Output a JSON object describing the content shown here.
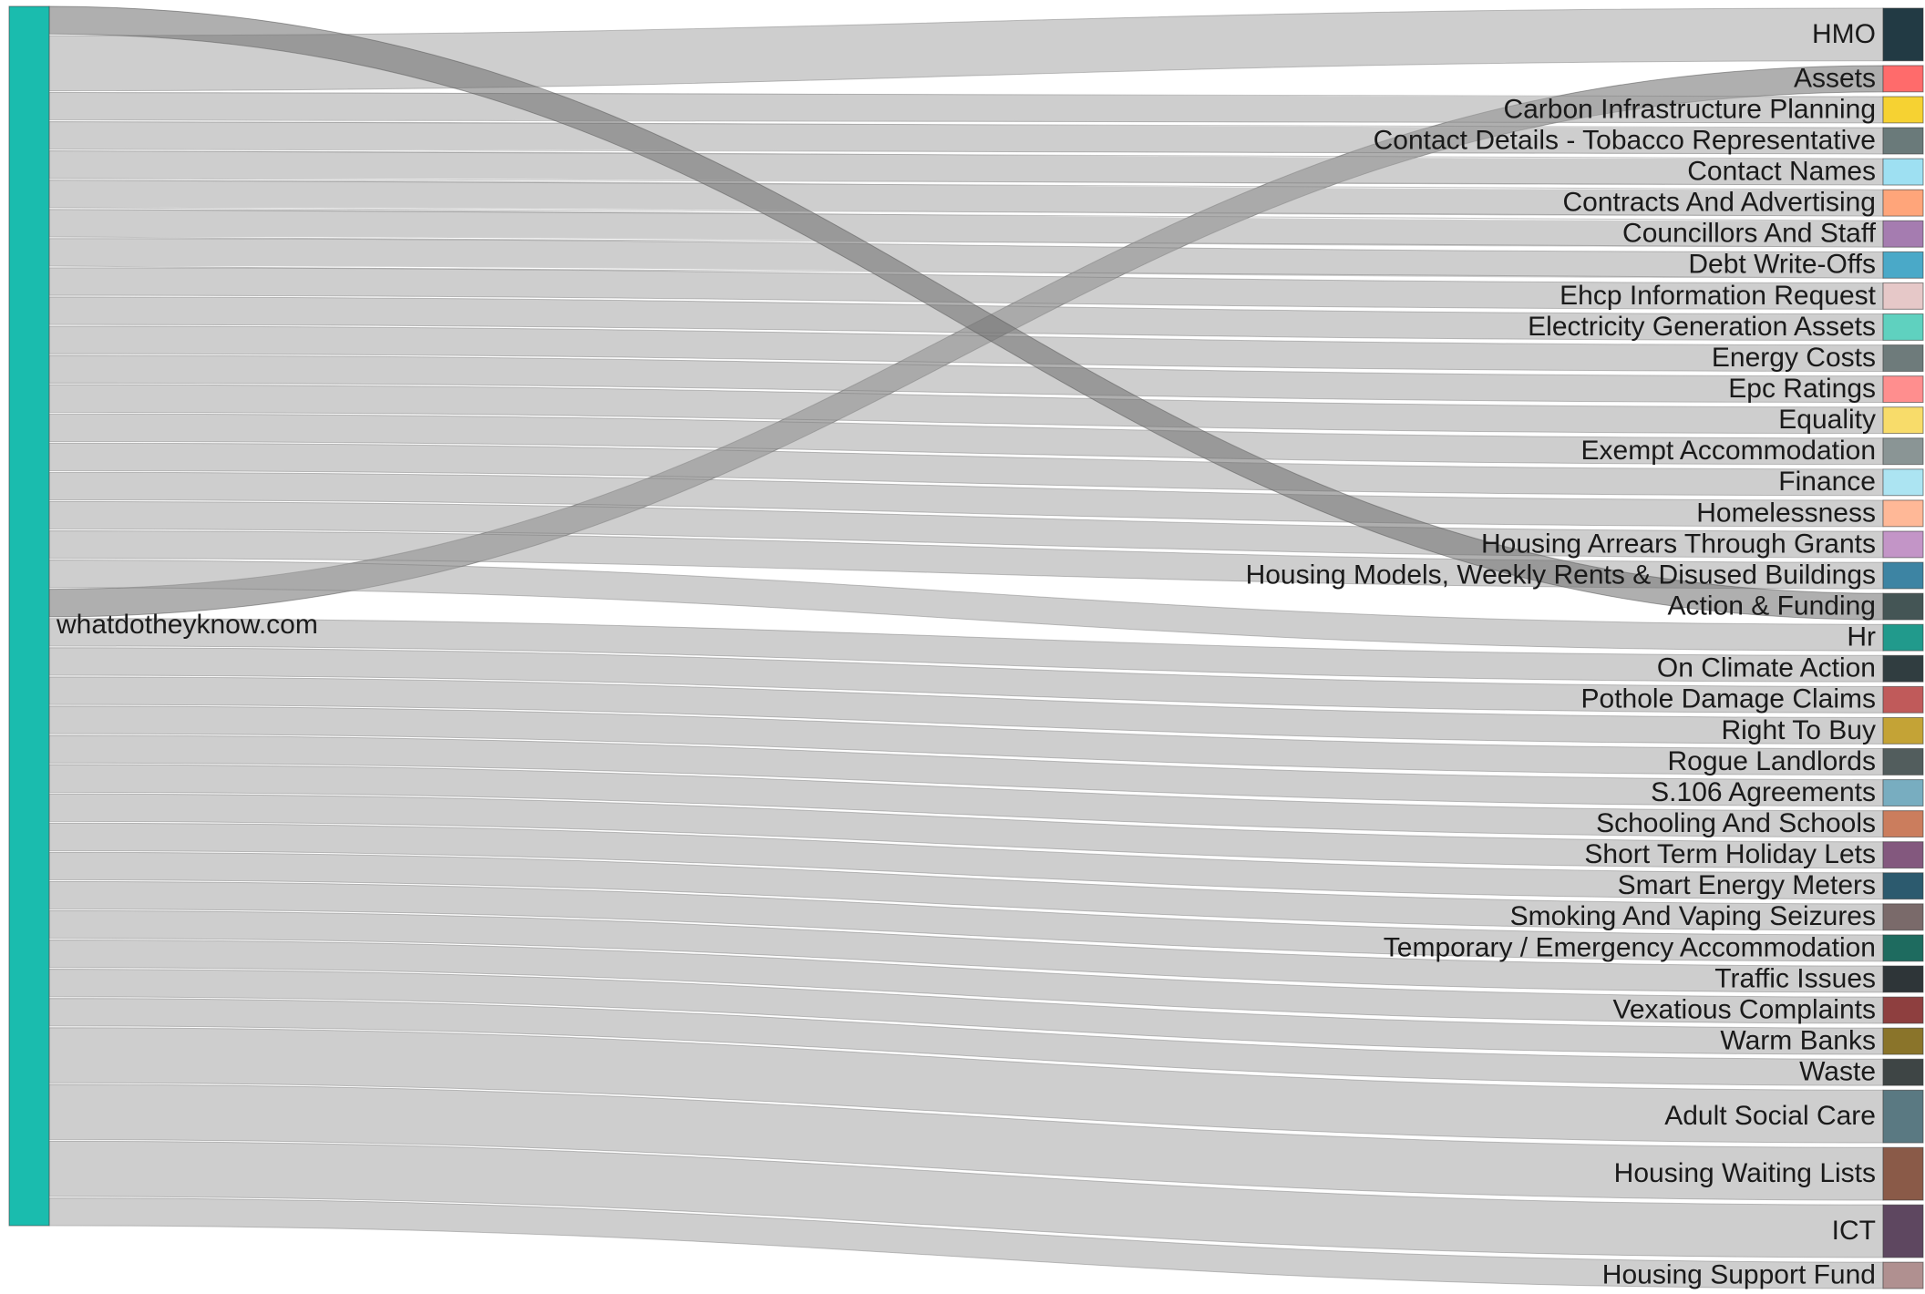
{
  "chart_data": {
    "type": "sankey",
    "source": {
      "name": "whatdotheyknow.com",
      "color": "#1abcae"
    },
    "unit_note": "",
    "targets": [
      {
        "name": "HMO",
        "value": 2,
        "color": "#223a44"
      },
      {
        "name": "Assets",
        "value": 1,
        "color": "#ff6b6b"
      },
      {
        "name": "Carbon Infrastructure Planning",
        "value": 1,
        "color": "#f6d232"
      },
      {
        "name": "Contact Details - Tobacco Representative",
        "value": 1,
        "color": "#6a7a7a"
      },
      {
        "name": "Contact Names",
        "value": 1,
        "color": "#9ee0f2"
      },
      {
        "name": "Contracts And Advertising",
        "value": 1,
        "color": "#ffa57a"
      },
      {
        "name": "Councillors And Staff",
        "value": 1,
        "color": "#a57cb0"
      },
      {
        "name": "Debt Write-Offs",
        "value": 1,
        "color": "#4aa9c8"
      },
      {
        "name": "Ehcp Information Request",
        "value": 1,
        "color": "#e6c8c8"
      },
      {
        "name": "Electricity Generation Assets",
        "value": 1,
        "color": "#5fd1bf"
      },
      {
        "name": "Energy Costs",
        "value": 1,
        "color": "#6e7b7b"
      },
      {
        "name": "Epc Ratings",
        "value": 1,
        "color": "#ff8e8e"
      },
      {
        "name": "Equality",
        "value": 1,
        "color": "#f8dc6a"
      },
      {
        "name": "Exempt Accommodation",
        "value": 1,
        "color": "#8a9595"
      },
      {
        "name": "Finance",
        "value": 1,
        "color": "#ace4f2"
      },
      {
        "name": "Homelessness",
        "value": 1,
        "color": "#ffb897"
      },
      {
        "name": "Housing Arrears Through Grants",
        "value": 1,
        "color": "#c395c7"
      },
      {
        "name": "Housing Models, Weekly Rents & Disused Buildings",
        "value": 1,
        "color": "#3d84a3"
      },
      {
        "name": "Action & Funding",
        "value": 1,
        "color": "#445555"
      },
      {
        "name": "Hr",
        "value": 1,
        "color": "#219a8c"
      },
      {
        "name": "On Climate Action",
        "value": 1,
        "color": "#303d40"
      },
      {
        "name": "Pothole Damage Claims",
        "value": 1,
        "color": "#c05a5a"
      },
      {
        "name": "Right To Buy",
        "value": 1,
        "color": "#c4a336"
      },
      {
        "name": "Rogue Landlords",
        "value": 1,
        "color": "#525d5d"
      },
      {
        "name": "S.106 Agreements",
        "value": 1,
        "color": "#78adc0"
      },
      {
        "name": "Schooling And Schools",
        "value": 1,
        "color": "#cb7d5d"
      },
      {
        "name": "Short Term Holiday Lets",
        "value": 1,
        "color": "#83587e"
      },
      {
        "name": "Smart Energy Meters",
        "value": 1,
        "color": "#2c5a6e"
      },
      {
        "name": "Smoking And Vaping Seizures",
        "value": 1,
        "color": "#7a6a6a"
      },
      {
        "name": "Temporary / Emergency Accommodation",
        "value": 1,
        "color": "#1e6b5f"
      },
      {
        "name": "Traffic Issues",
        "value": 1,
        "color": "#2e3538"
      },
      {
        "name": "Vexatious Complaints",
        "value": 1,
        "color": "#8e3f3f"
      },
      {
        "name": "Warm Banks",
        "value": 1,
        "color": "#8a742a"
      },
      {
        "name": "Waste",
        "value": 1,
        "color": "#3e4545"
      },
      {
        "name": "Adult Social Care",
        "value": 2,
        "color": "#5a7982"
      },
      {
        "name": "Housing Waiting Lists",
        "value": 2,
        "color": "#8a5a48"
      },
      {
        "name": "ICT",
        "value": 2,
        "color": "#5e4760"
      },
      {
        "name": "Housing Support Fund",
        "value": 1,
        "color": "#b09090"
      }
    ]
  }
}
